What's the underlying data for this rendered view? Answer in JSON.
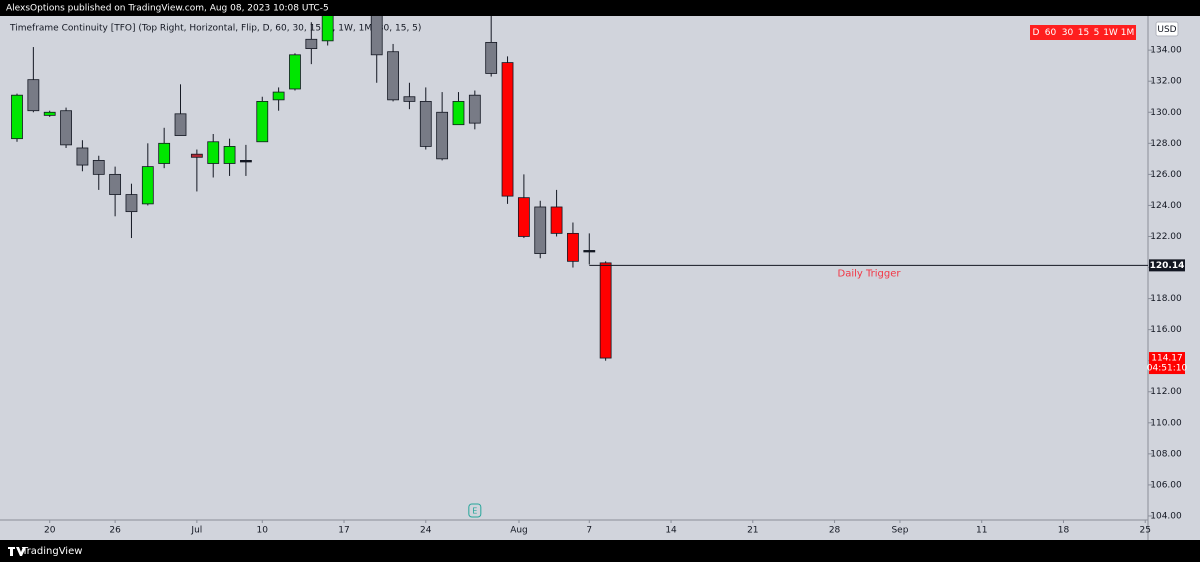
{
  "header": {
    "text": "AlexsOptions published on TradingView.com, Aug 08, 2023 10:08 UTC-5"
  },
  "footer": {
    "brand": "TradingView"
  },
  "chart_data": {
    "type": "candlestick",
    "subtitle": "Timeframe Continuity [TFO] (Top Right, Horizontal, Flip, D, 60, 30, 15, 5, 1W, 1M, 30, 15, 5)",
    "currency": "USD",
    "timeframe_table": {
      "cells": [
        "D",
        "60",
        "30",
        "15",
        "5",
        "1W",
        "1M"
      ],
      "color": "#ff1f1f"
    },
    "series": {
      "x": [
        0,
        1,
        2,
        3,
        4,
        5,
        6,
        7,
        8,
        9,
        10,
        11,
        12,
        13,
        14,
        15,
        16,
        17,
        18,
        19,
        22,
        23,
        24,
        25,
        26,
        27,
        28,
        29,
        30,
        31,
        32,
        33,
        34,
        35,
        36
      ],
      "open": [
        128.3,
        130.1,
        129.8,
        130.1,
        127.7,
        126.9,
        126.0,
        124.7,
        124.1,
        126.7,
        128.5,
        127.3,
        126.7,
        126.7,
        126.9,
        128.1,
        130.8,
        131.5,
        134.1,
        134.6,
        136.5,
        133.9,
        130.7,
        130.7,
        130.0,
        129.2,
        129.3,
        132.5,
        133.2,
        124.5,
        123.9,
        123.9,
        122.2,
        121.1,
        120.3
      ],
      "high": [
        131.2,
        134.2,
        130.1,
        130.3,
        128.2,
        127.2,
        126.5,
        125.4,
        128.0,
        129.0,
        131.8,
        127.6,
        128.6,
        128.3,
        127.9,
        131.0,
        131.6,
        133.8,
        135.8,
        137.0,
        137.0,
        134.4,
        131.9,
        131.6,
        131.3,
        131.3,
        131.4,
        136.3,
        133.6,
        126.0,
        124.3,
        125.0,
        122.9,
        122.2,
        120.4
      ],
      "low": [
        128.1,
        130.0,
        129.7,
        127.7,
        126.2,
        125.0,
        123.3,
        121.9,
        124.0,
        126.4,
        128.5,
        124.9,
        125.8,
        125.9,
        125.9,
        128.1,
        130.1,
        131.4,
        133.1,
        134.3,
        131.9,
        130.7,
        130.2,
        127.6,
        126.9,
        129.2,
        128.9,
        132.3,
        124.1,
        121.9,
        120.6,
        122.0,
        120.0,
        120.2,
        114.0
      ],
      "close": [
        131.1,
        132.1,
        130.0,
        127.9,
        126.6,
        126.0,
        124.7,
        123.6,
        126.5,
        128.0,
        129.9,
        127.1,
        128.1,
        127.8,
        126.8,
        130.7,
        131.3,
        133.7,
        134.7,
        136.6,
        133.7,
        130.8,
        131.0,
        127.8,
        127.0,
        130.7,
        131.1,
        134.5,
        124.6,
        122.0,
        120.9,
        122.2,
        120.4,
        121.1,
        114.17
      ],
      "colors": [
        "#00e600",
        "#787b86",
        "#00e600",
        "#787b86",
        "#787b86",
        "#787b86",
        "#787b86",
        "#787b86",
        "#00e600",
        "#00e600",
        "#787b86",
        "#b22833",
        "#00e600",
        "#00e600",
        "#131722",
        "#00e600",
        "#00e600",
        "#00e600",
        "#787b86",
        "#00e600",
        "#787b86",
        "#787b86",
        "#787b86",
        "#787b86",
        "#787b86",
        "#00e600",
        "#787b86",
        "#787b86",
        "#ff0000",
        "#ff0000",
        "#787b86",
        "#ff0000",
        "#ff0000",
        "#131722",
        "#ff0000"
      ]
    },
    "xlim": [
      -1.04,
      69.17
    ],
    "xticks": [
      {
        "value": 2,
        "label": "20"
      },
      {
        "value": 6,
        "label": "26"
      },
      {
        "value": 11,
        "label": "Jul"
      },
      {
        "value": 15,
        "label": "10"
      },
      {
        "value": 20,
        "label": "17"
      },
      {
        "value": 25,
        "label": "24"
      },
      {
        "value": 30.7,
        "label": "Aug"
      },
      {
        "value": 35,
        "label": "7"
      },
      {
        "value": 40,
        "label": "14"
      },
      {
        "value": 45,
        "label": "21"
      },
      {
        "value": 50,
        "label": "28"
      },
      {
        "value": 54,
        "label": "Sep"
      },
      {
        "value": 59,
        "label": "11"
      },
      {
        "value": 64,
        "label": "18"
      },
      {
        "value": 69,
        "label": "25"
      }
    ],
    "ylim": [
      103.74,
      136.2
    ],
    "yticks": [
      {
        "value": 104,
        "label": "104.00"
      },
      {
        "value": 106,
        "label": "106.00"
      },
      {
        "value": 108,
        "label": "108.00"
      },
      {
        "value": 110,
        "label": "110.00"
      },
      {
        "value": 112,
        "label": "112.00"
      },
      {
        "value": 114,
        "label": "114.00"
      },
      {
        "value": 116,
        "label": "116.00"
      },
      {
        "value": 118,
        "label": "118.00"
      },
      {
        "value": 120,
        "label": "120.00"
      },
      {
        "value": 122,
        "label": "122.00"
      },
      {
        "value": 124,
        "label": "124.00"
      },
      {
        "value": 126,
        "label": "126.00"
      },
      {
        "value": 128,
        "label": "128.00"
      },
      {
        "value": 130,
        "label": "130.00"
      },
      {
        "value": 132,
        "label": "132.00"
      },
      {
        "value": 134,
        "label": "134.00"
      }
    ],
    "price_line": {
      "value": 120.14,
      "text": "Daily Trigger",
      "color": "#f23645"
    },
    "last_price": {
      "value": 114.17,
      "countdown": "04:51:10",
      "color": "#ff0000"
    },
    "event_marker": {
      "x": 28,
      "label": "E"
    }
  }
}
